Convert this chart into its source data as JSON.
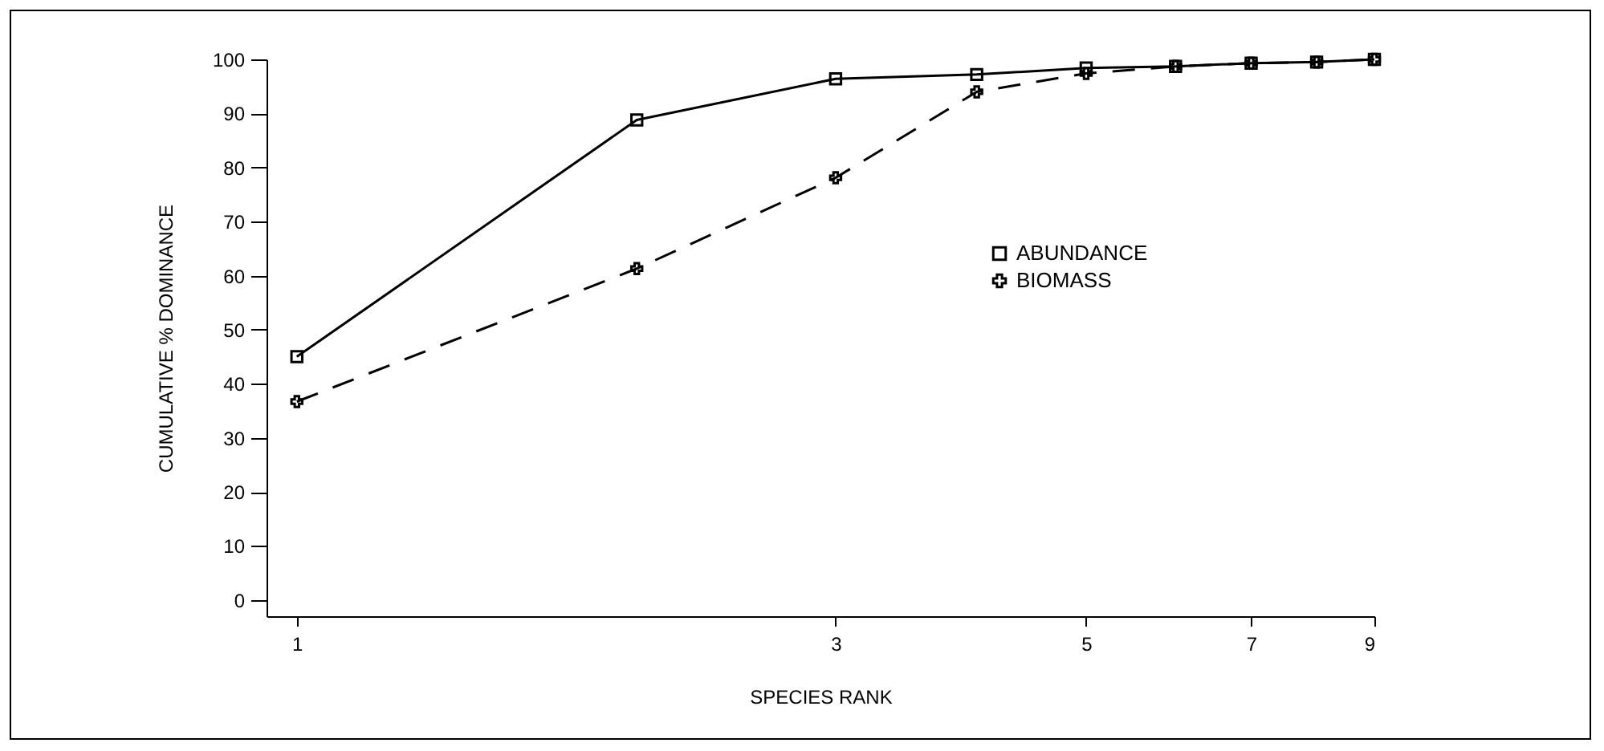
{
  "chart_data": {
    "type": "line",
    "xlabel": "SPECIES RANK",
    "ylabel": "CUMULATIVE % DOMINANCE",
    "x": [
      1,
      2,
      3,
      4,
      5,
      6,
      7,
      8,
      9
    ],
    "series": [
      {
        "name": "ABUNDANCE",
        "color": "#000000",
        "marker": "square",
        "line_style": "solid",
        "values": [
          45,
          88.8,
          96.4,
          97.2,
          98.4,
          98.7,
          99.3,
          99.5,
          100
        ]
      },
      {
        "name": "BIOMASS",
        "color": "#000000",
        "marker": "cross",
        "line_style": "dashed",
        "values": [
          36.7,
          61.3,
          78.1,
          94,
          97.4,
          98.7,
          99.3,
          99.5,
          100
        ]
      }
    ],
    "log": "x",
    "xlim": [
      0.94,
      9
    ],
    "xticks": [
      1,
      3,
      5,
      7,
      9
    ],
    "ylim": [
      -3,
      100
    ],
    "yticks": [
      0,
      10,
      20,
      30,
      40,
      50,
      60,
      70,
      80,
      90,
      100
    ],
    "grid": false,
    "legend": "right"
  }
}
